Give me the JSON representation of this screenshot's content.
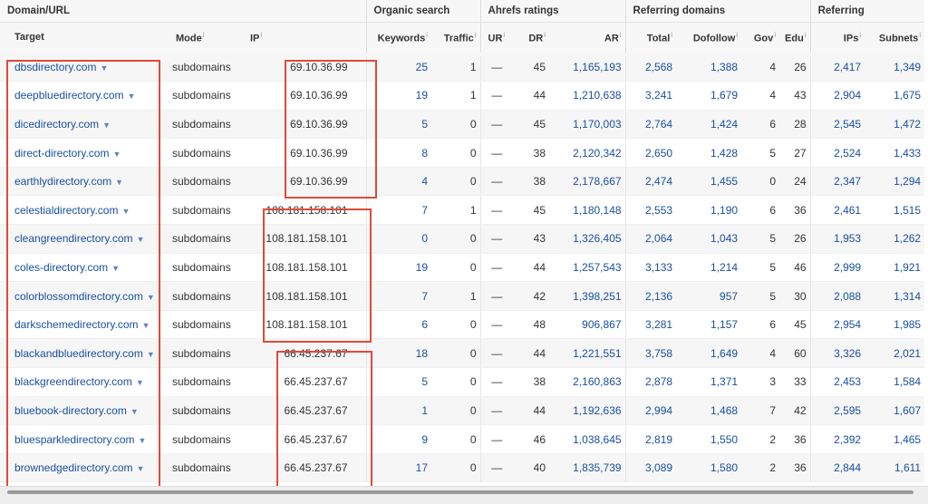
{
  "groups": {
    "domain_url": "Domain/URL",
    "organic_search": "Organic search",
    "ahrefs_ratings": "Ahrefs ratings",
    "referring_domains": "Referring domains",
    "referring": "Referring"
  },
  "columns": {
    "target": "Target",
    "mode": "Mode",
    "ip": "IP",
    "keywords": "Keywords",
    "traffic": "Traffic",
    "ur": "UR",
    "dr": "DR",
    "ar": "AR",
    "total": "Total",
    "dofollow": "Dofollow",
    "gov": "Gov",
    "edu": "Edu",
    "ips": "IPs",
    "subnets": "Subnets",
    "info_mark": "i"
  },
  "rows": [
    {
      "target": "dbsdirectory.com",
      "mode": "subdomains",
      "ip": "69.10.36.99",
      "keywords": "25",
      "traffic": "1",
      "ur": "—",
      "dr": "45",
      "ar": "1,165,193",
      "total": "2,568",
      "dofollow": "1,388",
      "gov": "4",
      "edu": "26",
      "ips": "2,417",
      "subnets": "1,349"
    },
    {
      "target": "deepbluedirectory.com",
      "mode": "subdomains",
      "ip": "69.10.36.99",
      "keywords": "19",
      "traffic": "1",
      "ur": "—",
      "dr": "44",
      "ar": "1,210,638",
      "total": "3,241",
      "dofollow": "1,679",
      "gov": "4",
      "edu": "43",
      "ips": "2,904",
      "subnets": "1,675"
    },
    {
      "target": "dicedirectory.com",
      "mode": "subdomains",
      "ip": "69.10.36.99",
      "keywords": "5",
      "traffic": "0",
      "ur": "—",
      "dr": "45",
      "ar": "1,170,003",
      "total": "2,764",
      "dofollow": "1,424",
      "gov": "6",
      "edu": "28",
      "ips": "2,545",
      "subnets": "1,472"
    },
    {
      "target": "direct-directory.com",
      "mode": "subdomains",
      "ip": "69.10.36.99",
      "keywords": "8",
      "traffic": "0",
      "ur": "—",
      "dr": "38",
      "ar": "2,120,342",
      "total": "2,650",
      "dofollow": "1,428",
      "gov": "5",
      "edu": "27",
      "ips": "2,524",
      "subnets": "1,433"
    },
    {
      "target": "earthlydirectory.com",
      "mode": "subdomains",
      "ip": "69.10.36.99",
      "keywords": "4",
      "traffic": "0",
      "ur": "—",
      "dr": "38",
      "ar": "2,178,667",
      "total": "2,474",
      "dofollow": "1,455",
      "gov": "0",
      "edu": "24",
      "ips": "2,347",
      "subnets": "1,294"
    },
    {
      "target": "celestialdirectory.com",
      "mode": "subdomains",
      "ip": "108.181.158.101",
      "keywords": "7",
      "traffic": "1",
      "ur": "—",
      "dr": "45",
      "ar": "1,180,148",
      "total": "2,553",
      "dofollow": "1,190",
      "gov": "6",
      "edu": "36",
      "ips": "2,461",
      "subnets": "1,515"
    },
    {
      "target": "cleangreendirectory.com",
      "mode": "subdomains",
      "ip": "108.181.158.101",
      "keywords": "0",
      "traffic": "0",
      "ur": "—",
      "dr": "43",
      "ar": "1,326,405",
      "total": "2,064",
      "dofollow": "1,043",
      "gov": "5",
      "edu": "26",
      "ips": "1,953",
      "subnets": "1,262"
    },
    {
      "target": "coles-directory.com",
      "mode": "subdomains",
      "ip": "108.181.158.101",
      "keywords": "19",
      "traffic": "0",
      "ur": "—",
      "dr": "44",
      "ar": "1,257,543",
      "total": "3,133",
      "dofollow": "1,214",
      "gov": "5",
      "edu": "46",
      "ips": "2,999",
      "subnets": "1,921"
    },
    {
      "target": "colorblossomdirectory.com",
      "mode": "subdomains",
      "ip": "108.181.158.101",
      "keywords": "7",
      "traffic": "1",
      "ur": "—",
      "dr": "42",
      "ar": "1,398,251",
      "total": "2,136",
      "dofollow": "957",
      "gov": "5",
      "edu": "30",
      "ips": "2,088",
      "subnets": "1,314"
    },
    {
      "target": "darkschemedirectory.com",
      "mode": "subdomains",
      "ip": "108.181.158.101",
      "keywords": "6",
      "traffic": "0",
      "ur": "—",
      "dr": "48",
      "ar": "906,867",
      "total": "3,281",
      "dofollow": "1,157",
      "gov": "6",
      "edu": "45",
      "ips": "2,954",
      "subnets": "1,985"
    },
    {
      "target": "blackandbluedirectory.com",
      "mode": "subdomains",
      "ip": "66.45.237.67",
      "keywords": "18",
      "traffic": "0",
      "ur": "—",
      "dr": "44",
      "ar": "1,221,551",
      "total": "3,758",
      "dofollow": "1,649",
      "gov": "4",
      "edu": "60",
      "ips": "3,326",
      "subnets": "2,021"
    },
    {
      "target": "blackgreendirectory.com",
      "mode": "subdomains",
      "ip": "66.45.237.67",
      "keywords": "5",
      "traffic": "0",
      "ur": "—",
      "dr": "38",
      "ar": "2,160,863",
      "total": "2,878",
      "dofollow": "1,371",
      "gov": "3",
      "edu": "33",
      "ips": "2,453",
      "subnets": "1,584"
    },
    {
      "target": "bluebook-directory.com",
      "mode": "subdomains",
      "ip": "66.45.237.67",
      "keywords": "1",
      "traffic": "0",
      "ur": "—",
      "dr": "44",
      "ar": "1,192,636",
      "total": "2,994",
      "dofollow": "1,468",
      "gov": "7",
      "edu": "42",
      "ips": "2,595",
      "subnets": "1,607"
    },
    {
      "target": "bluesparkledirectory.com",
      "mode": "subdomains",
      "ip": "66.45.237.67",
      "keywords": "9",
      "traffic": "0",
      "ur": "—",
      "dr": "46",
      "ar": "1,038,645",
      "total": "2,819",
      "dofollow": "1,550",
      "gov": "2",
      "edu": "36",
      "ips": "2,392",
      "subnets": "1,465"
    },
    {
      "target": "brownedgedirectory.com",
      "mode": "subdomains",
      "ip": "66.45.237.67",
      "keywords": "17",
      "traffic": "0",
      "ur": "—",
      "dr": "40",
      "ar": "1,835,739",
      "total": "3,089",
      "dofollow": "1,580",
      "gov": "2",
      "edu": "36",
      "ips": "2,844",
      "subnets": "1,611"
    }
  ],
  "annotation_color": "#e04a3a",
  "link_color": "#1a4fa0"
}
